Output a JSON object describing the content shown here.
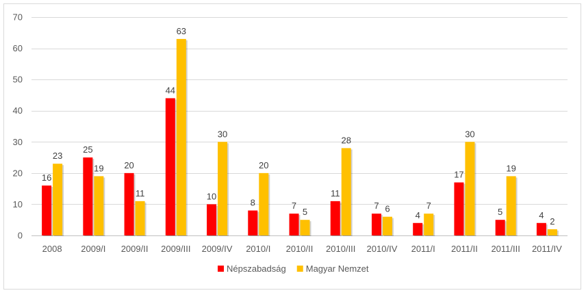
{
  "chart_data": {
    "type": "bar",
    "title": "",
    "xlabel": "",
    "ylabel": "",
    "ylim": [
      0,
      70
    ],
    "yticks": [
      0,
      10,
      20,
      30,
      40,
      50,
      60,
      70
    ],
    "grid": true,
    "legend_position": "bottom",
    "categories": [
      "2008",
      "2009/I",
      "2009/II",
      "2009/III",
      "2009/IV",
      "2010/I",
      "2010/II",
      "2010/III",
      "2010/IV",
      "2011/I",
      "2011/II",
      "2011/III",
      "2011/IV"
    ],
    "series": [
      {
        "name": "Népszabadság",
        "color": "#ff0000",
        "values": [
          16,
          25,
          20,
          44,
          10,
          8,
          7,
          11,
          7,
          4,
          17,
          5,
          4
        ]
      },
      {
        "name": "Magyar Nemzet",
        "color": "#ffc000",
        "values": [
          23,
          19,
          11,
          63,
          30,
          20,
          5,
          28,
          6,
          7,
          30,
          19,
          2
        ]
      }
    ]
  }
}
